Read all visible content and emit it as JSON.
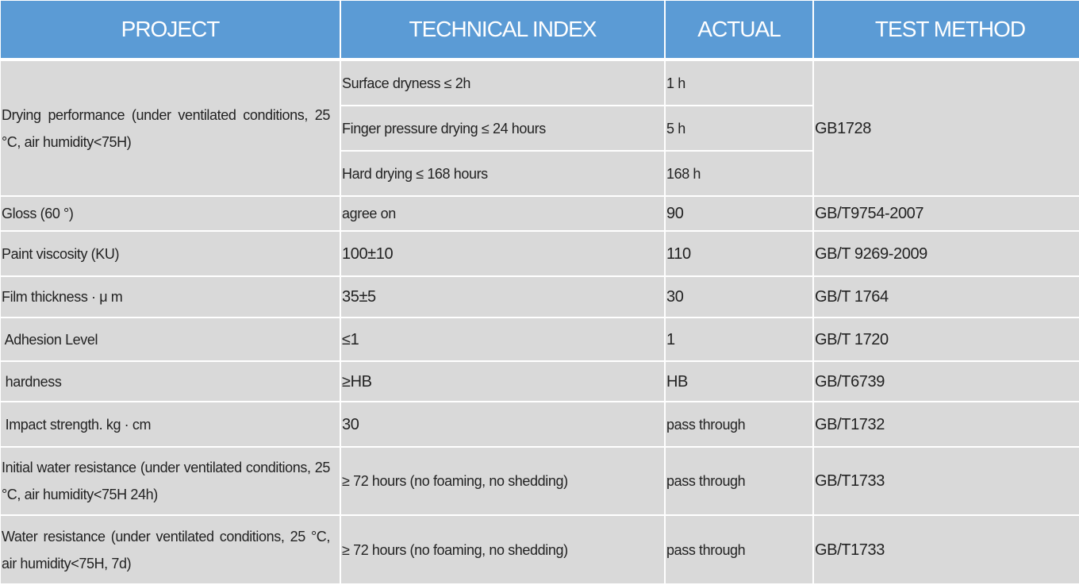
{
  "header": [
    "PROJECT",
    "TECHNICAL INDEX",
    "ACTUAL",
    "TEST METHOD"
  ],
  "drying": {
    "project": "Drying performance (under ventilated conditions, 25 °C, air humidity<75H)",
    "method": "GB1728",
    "sub": [
      {
        "index": "Surface dryness ≤ 2h",
        "actual": "1 h"
      },
      {
        "index": "Finger pressure drying ≤ 24 hours",
        "actual": "5 h"
      },
      {
        "index": "Hard drying ≤ 168 hours",
        "actual": "168 h"
      }
    ]
  },
  "rows": [
    {
      "project": "Gloss (60 °)",
      "index": "agree on",
      "actual": "90",
      "method": "GB/T9754-2007"
    },
    {
      "project": "Paint viscosity (KU)",
      "index": "100±10",
      "actual": "110",
      "method": "GB/T 9269-2009"
    },
    {
      "project": "Film thickness · μ m",
      "index": "35±5",
      "actual": "30",
      "method": "GB/T 1764"
    },
    {
      "project": " Adhesion Level",
      "index": "≤1",
      "actual": "1",
      "method": "GB/T 1720"
    },
    {
      "project": " hardness",
      "index": "≥HB",
      "actual": "HB",
      "method": "GB/T6739"
    },
    {
      "project": " Impact strength. kg · cm",
      "index": "30",
      "actual": "pass through",
      "method": "GB/T1732"
    },
    {
      "project": "Initial water resistance (under ventilated conditions, 25 °C, air humidity<75H 24h)",
      "index": "≥ 72 hours (no foaming, no shedding)",
      "actual": "pass through",
      "method": "GB/T1733"
    },
    {
      "project": "Water resistance (under ventilated conditions, 25 °C, air humidity<75H, 7d)",
      "index": "≥ 72 hours (no foaming, no shedding)",
      "actual": "pass through",
      "method": "GB/T1733"
    }
  ],
  "colors": {
    "header": "#5b9bd5",
    "cell": "#d9d9d9",
    "grid": "#ffffff"
  }
}
